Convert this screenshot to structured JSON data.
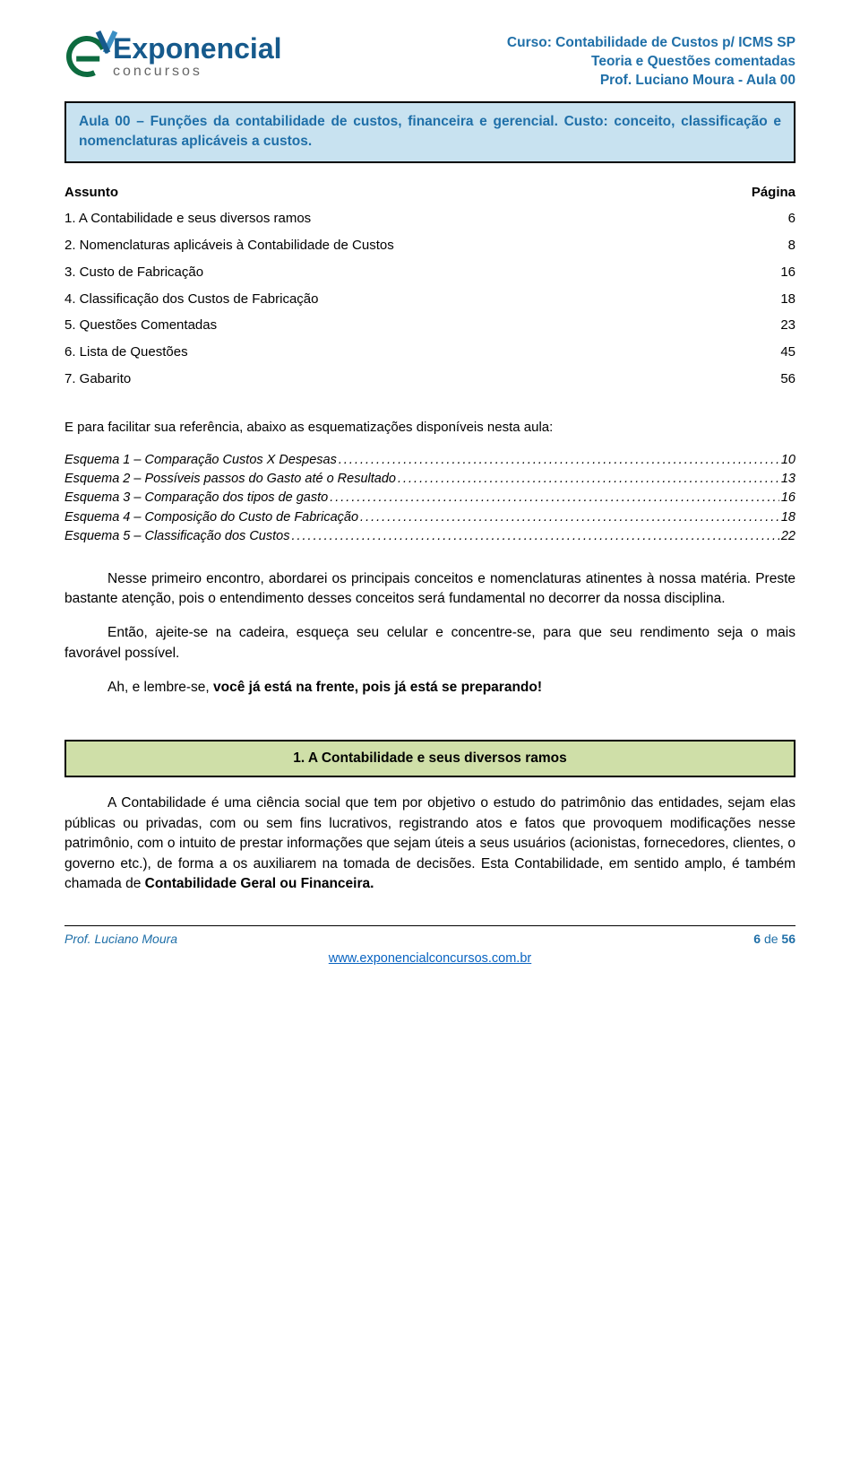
{
  "header": {
    "logo_title": "Exponencial",
    "logo_sub": "concursos",
    "line1": "Curso: Contabilidade de Custos p/ ICMS SP",
    "line2": "Teoria e Questões comentadas",
    "line3": "Prof. Luciano Moura - Aula 00"
  },
  "title_box": "Aula 00 – Funções da contabilidade de custos, financeira e gerencial. Custo: conceito, classificação e nomenclaturas aplicáveis a custos.",
  "toc": {
    "col_subject": "Assunto",
    "col_page": "Página",
    "rows": [
      {
        "n": "1.",
        "label": "A Contabilidade e seus diversos ramos",
        "page": "6"
      },
      {
        "n": "2.",
        "label": "Nomenclaturas aplicáveis à Contabilidade de Custos",
        "page": "8"
      },
      {
        "n": "3.",
        "label": "Custo de Fabricação",
        "page": "16"
      },
      {
        "n": "4.",
        "label": "Classificação dos Custos de Fabricação",
        "page": "18"
      },
      {
        "n": "5.",
        "label": "Questões Comentadas",
        "page": "23"
      },
      {
        "n": "6.",
        "label": "Lista de Questões",
        "page": "45"
      },
      {
        "n": "7.",
        "label": "Gabarito",
        "page": "56"
      }
    ]
  },
  "intro": "E para facilitar sua referência, abaixo as esquematizações disponíveis nesta aula:",
  "schemas": [
    {
      "label": "Esquema 1 – Comparação Custos X Despesas",
      "page": "10"
    },
    {
      "label": "Esquema 2 – Possíveis passos do Gasto até o Resultado",
      "page": "13"
    },
    {
      "label": "Esquema 3 – Comparação dos tipos de gasto",
      "page": "16"
    },
    {
      "label": "Esquema 4 – Composição do Custo de Fabricação",
      "page": "18"
    },
    {
      "label": "Esquema 5 – Classificação dos Custos",
      "page": "22"
    }
  ],
  "paragraphs": {
    "p1": "Nesse primeiro encontro, abordarei os principais conceitos e nomenclaturas atinentes à nossa matéria. Preste bastante atenção, pois o entendimento desses conceitos será fundamental no decorrer da nossa disciplina.",
    "p2": "Então, ajeite-se na cadeira, esqueça seu celular e concentre-se, para que seu rendimento seja o mais favorável possível.",
    "p3_pre": "Ah, e lembre-se, ",
    "p3_bold": "você já está na frente, pois já está se preparando!",
    "section_heading": "1.     A Contabilidade e seus diversos ramos",
    "p4_a": "A Contabilidade é uma ciência social que tem por objetivo o estudo do patrimônio das entidades, sejam elas públicas ou privadas, com ou sem fins lucrativos, registrando atos e fatos que provoquem modificações nesse patrimônio, com o intuito de prestar informações que sejam úteis a seus usuários (acionistas, fornecedores, clientes, o governo etc.), de forma a os auxiliarem na tomada de decisões. Esta Contabilidade, em sentido amplo, é também chamada de ",
    "p4_bold": "Contabilidade Geral ou Financeira."
  },
  "footer": {
    "left": "Prof. Luciano Moura",
    "center": "www.exponencialconcursos.com.br",
    "right_a": "6",
    "right_b": " de ",
    "right_c": "56"
  },
  "colors": {
    "blue_text": "#1f6fa8",
    "title_box_bg": "#c8e2f0",
    "section_box_bg": "#cfdfa8",
    "link_color": "#0863c1"
  }
}
